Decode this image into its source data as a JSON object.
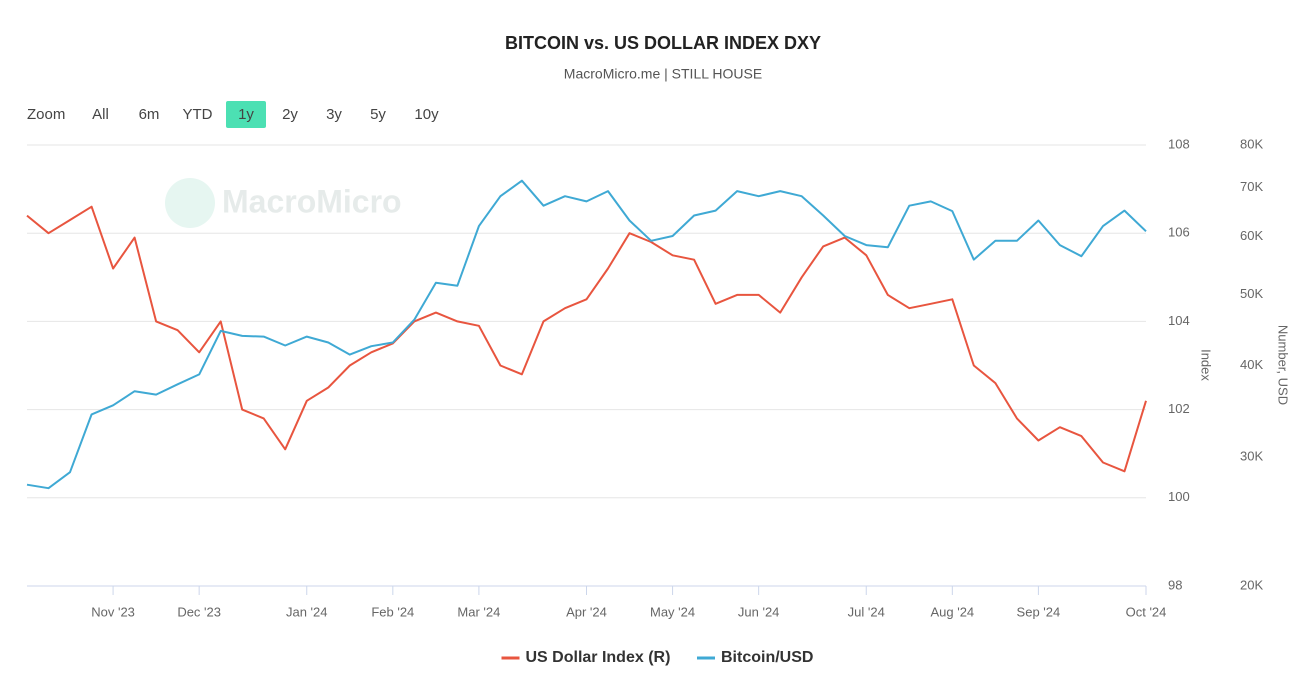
{
  "chart_data": {
    "type": "line",
    "title": "BITCOIN vs. US DOLLAR INDEX DXY",
    "subtitle": "MacroMicro.me | STILL HOUSE",
    "watermark": "MacroMicro",
    "range_selector": {
      "label": "Zoom",
      "buttons": [
        "All",
        "6m",
        "YTD",
        "1y",
        "2y",
        "3y",
        "5y",
        "10y"
      ],
      "selected": "1y",
      "selected_color": "#4ce0b3"
    },
    "categories": [
      null,
      null,
      null,
      null,
      "Nov '23",
      null,
      null,
      null,
      "Dec '23",
      null,
      null,
      null,
      null,
      "Jan '24",
      null,
      null,
      null,
      "Feb '24",
      null,
      null,
      null,
      "Mar '24",
      null,
      null,
      null,
      null,
      "Apr '24",
      null,
      null,
      null,
      "May '24",
      null,
      null,
      null,
      "Jun '24",
      null,
      null,
      null,
      null,
      "Jul '24",
      null,
      null,
      null,
      "Aug '24",
      null,
      null,
      null,
      "Sep '24",
      null,
      null,
      null,
      null,
      "Oct '24"
    ],
    "ylabel": "Index",
    "y2label": "Number, USD",
    "ylim": [
      98,
      108
    ],
    "yticks": [
      98,
      100,
      102,
      104,
      106,
      108
    ],
    "y2lim": [
      20000,
      80000
    ],
    "y2log": true,
    "y2ticks": [
      {
        "value": 20000,
        "label": "20K"
      },
      {
        "value": 30000,
        "label": "30K"
      },
      {
        "value": 40000,
        "label": "40K"
      },
      {
        "value": 50000,
        "label": "50K"
      },
      {
        "value": 60000,
        "label": "60K"
      },
      {
        "value": 70000,
        "label": "70K"
      },
      {
        "value": 80000,
        "label": "80K"
      }
    ],
    "grid": true,
    "legend": "bottom",
    "series": [
      {
        "name": "US Dollar Index (R)",
        "color": "#e8553f",
        "axis": "y",
        "values": [
          106.4,
          106.0,
          106.3,
          106.6,
          105.2,
          105.9,
          104.0,
          103.8,
          103.3,
          104.0,
          102.0,
          101.8,
          101.1,
          102.2,
          102.5,
          103.0,
          103.3,
          103.5,
          104.0,
          104.2,
          104.0,
          103.9,
          103.0,
          102.8,
          104.0,
          104.3,
          104.5,
          105.2,
          106.0,
          105.8,
          105.5,
          105.4,
          104.4,
          104.6,
          104.6,
          104.2,
          105.0,
          105.7,
          105.9,
          105.5,
          104.6,
          104.3,
          104.4,
          104.5,
          103.0,
          102.6,
          101.8,
          101.3,
          101.6,
          101.4,
          100.8,
          100.6,
          102.2
        ]
      },
      {
        "name": "Bitcoin/USD",
        "color": "#3fa9d4",
        "axis": "y2",
        "values": [
          27500,
          27200,
          28600,
          34300,
          35300,
          36900,
          36500,
          37700,
          38900,
          44600,
          43900,
          43800,
          42600,
          43800,
          43000,
          41400,
          42500,
          43000,
          46200,
          51900,
          51400,
          62000,
          68100,
          71500,
          66100,
          68100,
          67000,
          69200,
          63100,
          59200,
          60100,
          64100,
          65100,
          69200,
          68100,
          69200,
          68100,
          64100,
          60100,
          58400,
          58000,
          66100,
          67000,
          65000,
          55800,
          59200,
          59200,
          63100,
          58400,
          56400,
          62000,
          65100,
          61000
        ]
      }
    ]
  }
}
